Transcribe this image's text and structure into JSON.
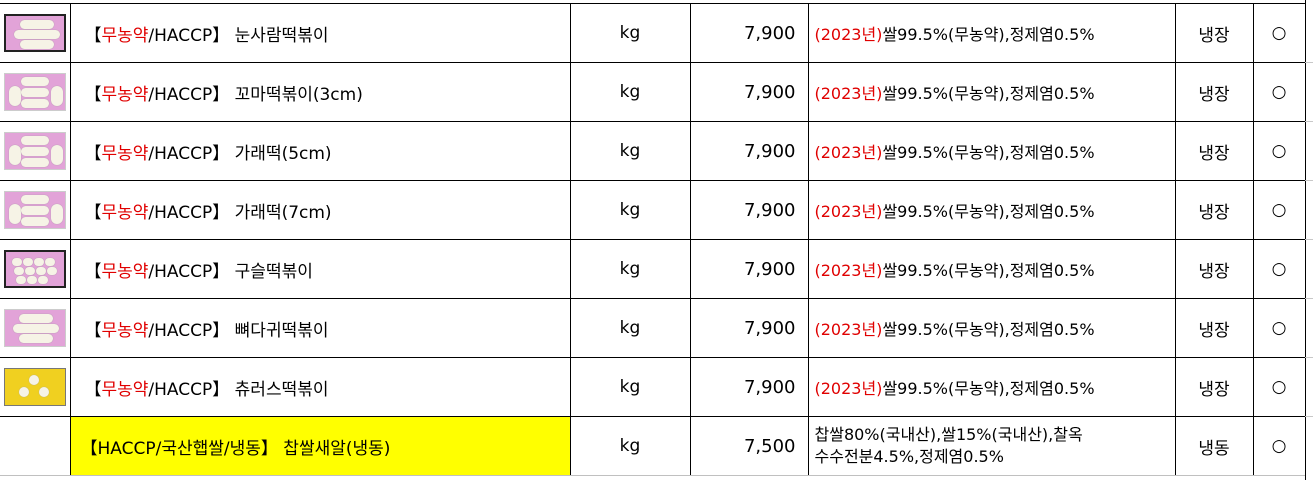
{
  "rows": [
    {
      "thumb": "rice-cake-bone-shape",
      "prefix": "무농약",
      "name": "/HACCP】 눈사람떡볶이",
      "unit": "kg",
      "price": "7,900",
      "year": "(2023년)",
      "ingredients": "쌀99.5%(무농약),정제염0.5%",
      "storage": "냉장",
      "mark": "○"
    },
    {
      "thumb": "rice-cake-short",
      "prefix": "무농약",
      "name": "/HACCP】 꼬마떡볶이(3cm)",
      "unit": "kg",
      "price": "7,900",
      "year": "(2023년)",
      "ingredients": "쌀99.5%(무농약),정제염0.5%",
      "storage": "냉장",
      "mark": "○"
    },
    {
      "thumb": "rice-cake-bar",
      "prefix": "무농약",
      "name": "/HACCP】 가래떡(5cm)",
      "unit": "kg",
      "price": "7,900",
      "year": "(2023년)",
      "ingredients": "쌀99.5%(무농약),정제염0.5%",
      "storage": "냉장",
      "mark": "○"
    },
    {
      "thumb": "rice-cake-bar",
      "prefix": "무농약",
      "name": "/HACCP】 가래떡(7cm)",
      "unit": "kg",
      "price": "7,900",
      "year": "(2023년)",
      "ingredients": "쌀99.5%(무농약),정제염0.5%",
      "storage": "냉장",
      "mark": "○"
    },
    {
      "thumb": "rice-cake-ball",
      "prefix": "무농약",
      "name": "/HACCP】 구슬떡볶이",
      "unit": "kg",
      "price": "7,900",
      "year": "(2023년)",
      "ingredients": "쌀99.5%(무농약),정제염0.5%",
      "storage": "냉장",
      "mark": "○"
    },
    {
      "thumb": "rice-cake-bone-shape",
      "prefix": "무농약",
      "name": "/HACCP】 뼈다귀떡볶이",
      "unit": "kg",
      "price": "7,900",
      "year": "(2023년)",
      "ingredients": "쌀99.5%(무농약),정제염0.5%",
      "storage": "냉장",
      "mark": "○"
    },
    {
      "thumb": "rice-cake-churros",
      "prefix": "무농약",
      "name": "/HACCP】 츄러스떡볶이",
      "unit": "kg",
      "price": "7,900",
      "year": "(2023년)",
      "ingredients": "쌀99.5%(무농약),정제염0.5%",
      "storage": "냉장",
      "mark": "○"
    }
  ],
  "last_row": {
    "name": "【HACCP/국산햅쌀/냉동】 찹쌀새알(냉동)",
    "unit": "kg",
    "price": "7,500",
    "ingredients_line1": "찹쌀80%(국내산),쌀15%(국내산),찰옥",
    "ingredients_line2": "수수전분4.5%,정제염0.5%",
    "storage": "냉동",
    "mark": "○",
    "highlight": "#ffff00"
  },
  "bracket_open": "【",
  "colors": {
    "accent_red": "#e00000",
    "thumb_pink": "#e2a3d8",
    "thumb_yellow": "#f0d020"
  }
}
